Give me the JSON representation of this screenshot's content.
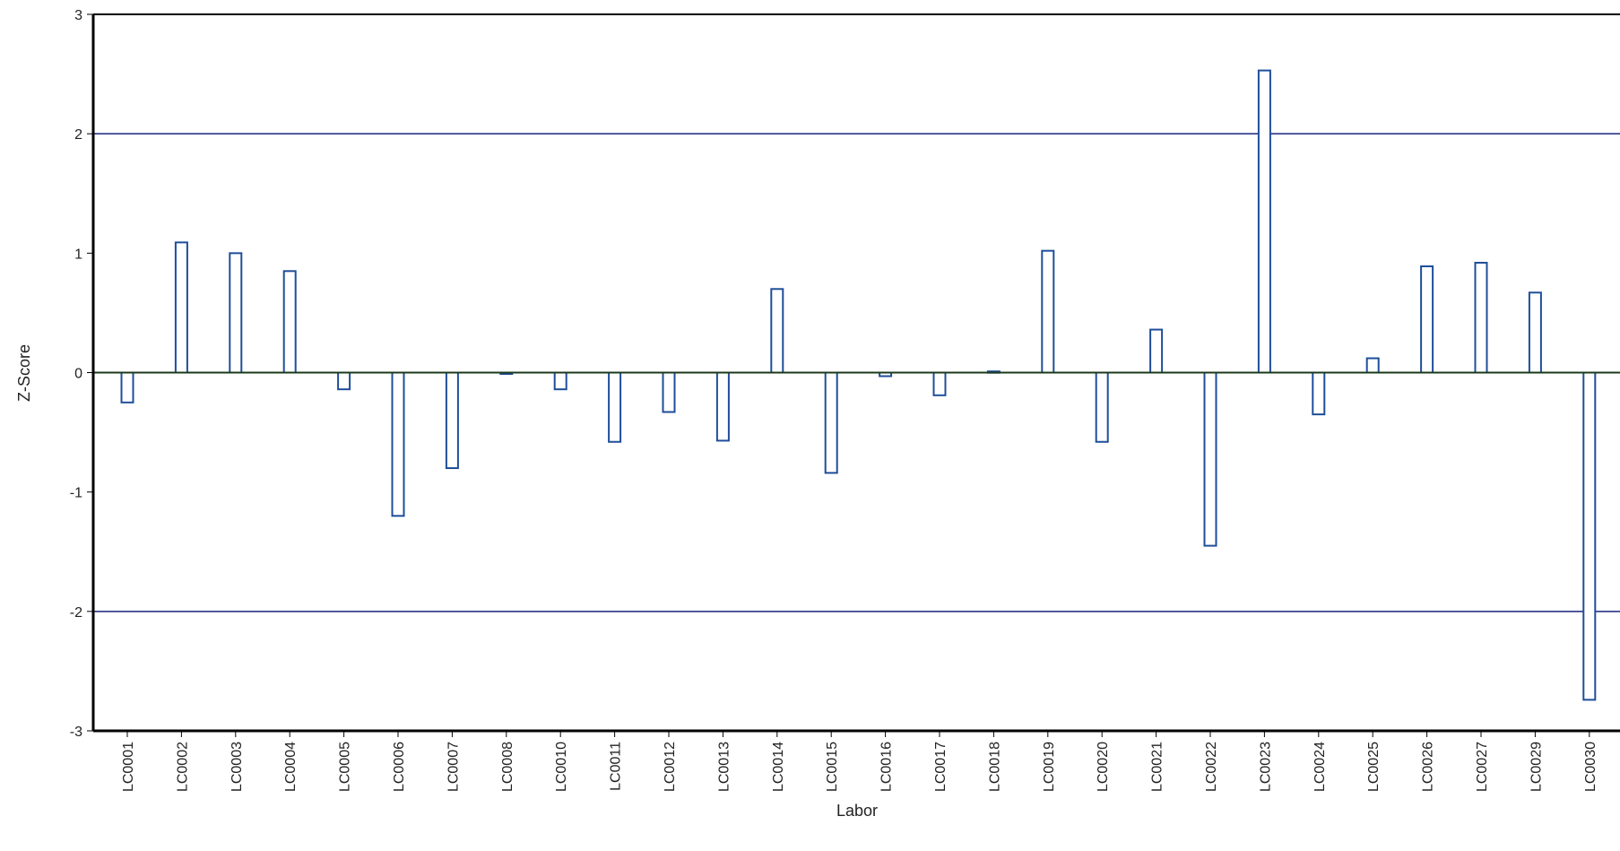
{
  "chart_data": {
    "type": "bar",
    "xlabel": "Labor",
    "ylabel": "Z-Score",
    "ylim": [
      -3,
      3
    ],
    "yticks": [
      "3",
      "2",
      "1",
      "0",
      "-1",
      "-2",
      "-3"
    ],
    "ytick_values": [
      3,
      2,
      1,
      0,
      -1,
      -2,
      -3
    ],
    "reference_lines": [
      2,
      -2
    ],
    "grid": false,
    "categories": [
      "LC0001",
      "LC0002",
      "LC0003",
      "LC0004",
      "LC0005",
      "LC0006",
      "LC0007",
      "LC0008",
      "LC0010",
      "LC0011",
      "LC0012",
      "LC0013",
      "LC0014",
      "LC0015",
      "LC0016",
      "LC0017",
      "LC0018",
      "LC0019",
      "LC0020",
      "LC0021",
      "LC0022",
      "LC0023",
      "LC0024",
      "LC0025",
      "LC0026",
      "LC0027",
      "LC0029",
      "LC0030"
    ],
    "values": [
      -0.25,
      1.09,
      1.0,
      0.85,
      -0.14,
      -1.2,
      -0.8,
      0.0,
      -0.14,
      -0.58,
      -0.33,
      -0.57,
      0.7,
      -0.84,
      -0.03,
      -0.19,
      0.01,
      1.02,
      -0.58,
      0.36,
      -1.45,
      2.53,
      -0.35,
      0.12,
      0.89,
      0.92,
      0.67,
      -2.74
    ],
    "colors": {
      "bar_stroke": "#1f4e9a",
      "bar_fill": "#ffffff",
      "reference_line": "#1a237e",
      "zero_line": "#1b3a1b",
      "axis": "#000000"
    }
  }
}
